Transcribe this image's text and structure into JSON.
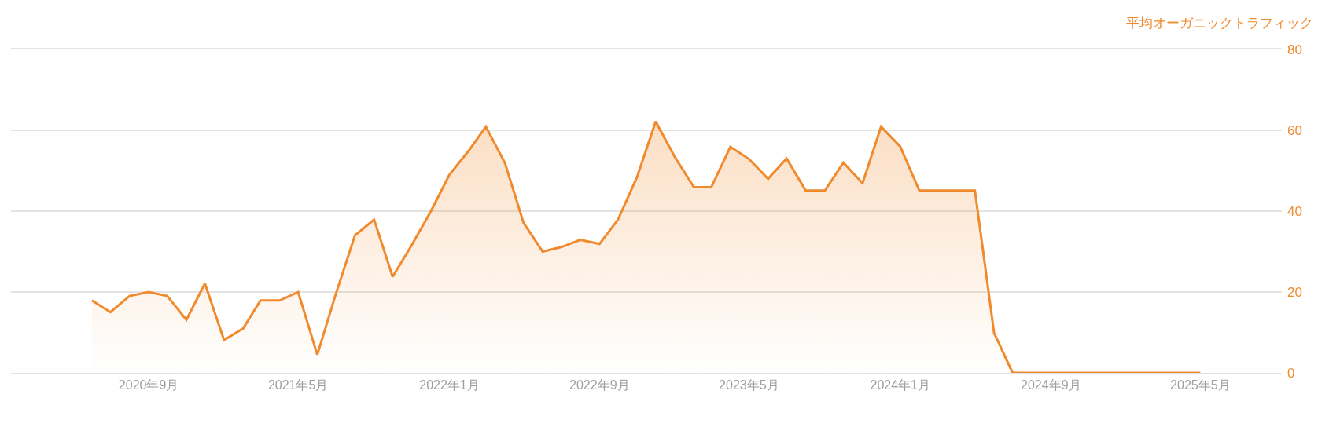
{
  "chart_data": {
    "type": "area",
    "ylabel": "平均オーガニックトラフィック",
    "x": [
      "2020-06",
      "2020-07",
      "2020-08",
      "2020-09",
      "2020-10",
      "2020-11",
      "2020-12",
      "2021-01",
      "2021-02",
      "2021-03",
      "2021-04",
      "2021-05",
      "2021-06",
      "2021-07",
      "2021-08",
      "2021-09",
      "2021-10",
      "2021-11",
      "2021-12",
      "2022-01",
      "2022-02",
      "2022-03",
      "2022-04",
      "2022-05",
      "2022-06",
      "2022-07",
      "2022-08",
      "2022-09",
      "2022-10",
      "2022-11",
      "2022-12",
      "2023-01",
      "2023-02",
      "2023-03",
      "2023-04",
      "2023-05",
      "2023-06",
      "2023-07",
      "2023-08",
      "2023-09",
      "2023-10",
      "2023-11",
      "2023-12",
      "2024-01",
      "2024-02",
      "2024-03",
      "2024-04",
      "2024-05",
      "2024-06",
      "2024-07",
      "2024-08",
      "2024-09",
      "2024-10",
      "2024-11",
      "2024-12",
      "2025-01",
      "2025-02",
      "2025-03",
      "2025-04",
      "2025-05"
    ],
    "series": [
      {
        "color": "#f08a2c",
        "values": [
          17.9,
          15,
          19,
          20,
          19,
          13.1,
          22.1,
          8.1,
          11,
          17.9,
          17.9,
          20,
          4.5,
          19.5,
          34,
          37.9,
          23.8,
          31.6,
          39.7,
          49,
          54.9,
          60.9,
          51.9,
          37.1,
          30,
          31.1,
          32.9,
          31.9,
          37.9,
          48.5,
          62.2,
          53.4,
          45.9,
          45.9,
          55.9,
          52.9,
          48,
          53,
          45.1,
          45.1,
          52,
          46.9,
          60.9,
          56,
          45.1,
          45.1,
          45.1,
          45.1,
          9.9,
          0,
          0,
          0,
          0,
          0,
          0,
          0,
          0,
          0,
          0,
          0
        ]
      }
    ],
    "xlim": [
      "2020-01-22",
      "2025-09-10"
    ],
    "xticks": [
      {
        "value": "2020-09",
        "label": "2020年9月"
      },
      {
        "value": "2021-05",
        "label": "2021年5月"
      },
      {
        "value": "2022-01",
        "label": "2022年1月"
      },
      {
        "value": "2022-09",
        "label": "2022年9月"
      },
      {
        "value": "2023-05",
        "label": "2023年5月"
      },
      {
        "value": "2024-01",
        "label": "2024年1月"
      },
      {
        "value": "2024-09",
        "label": "2024年9月"
      },
      {
        "value": "2025-05",
        "label": "2025年5月"
      }
    ],
    "ylim": [
      0,
      80
    ],
    "yticks": [
      0,
      20,
      40,
      60,
      80
    ],
    "grid": "y",
    "marker": "none",
    "line_style": "solid"
  }
}
